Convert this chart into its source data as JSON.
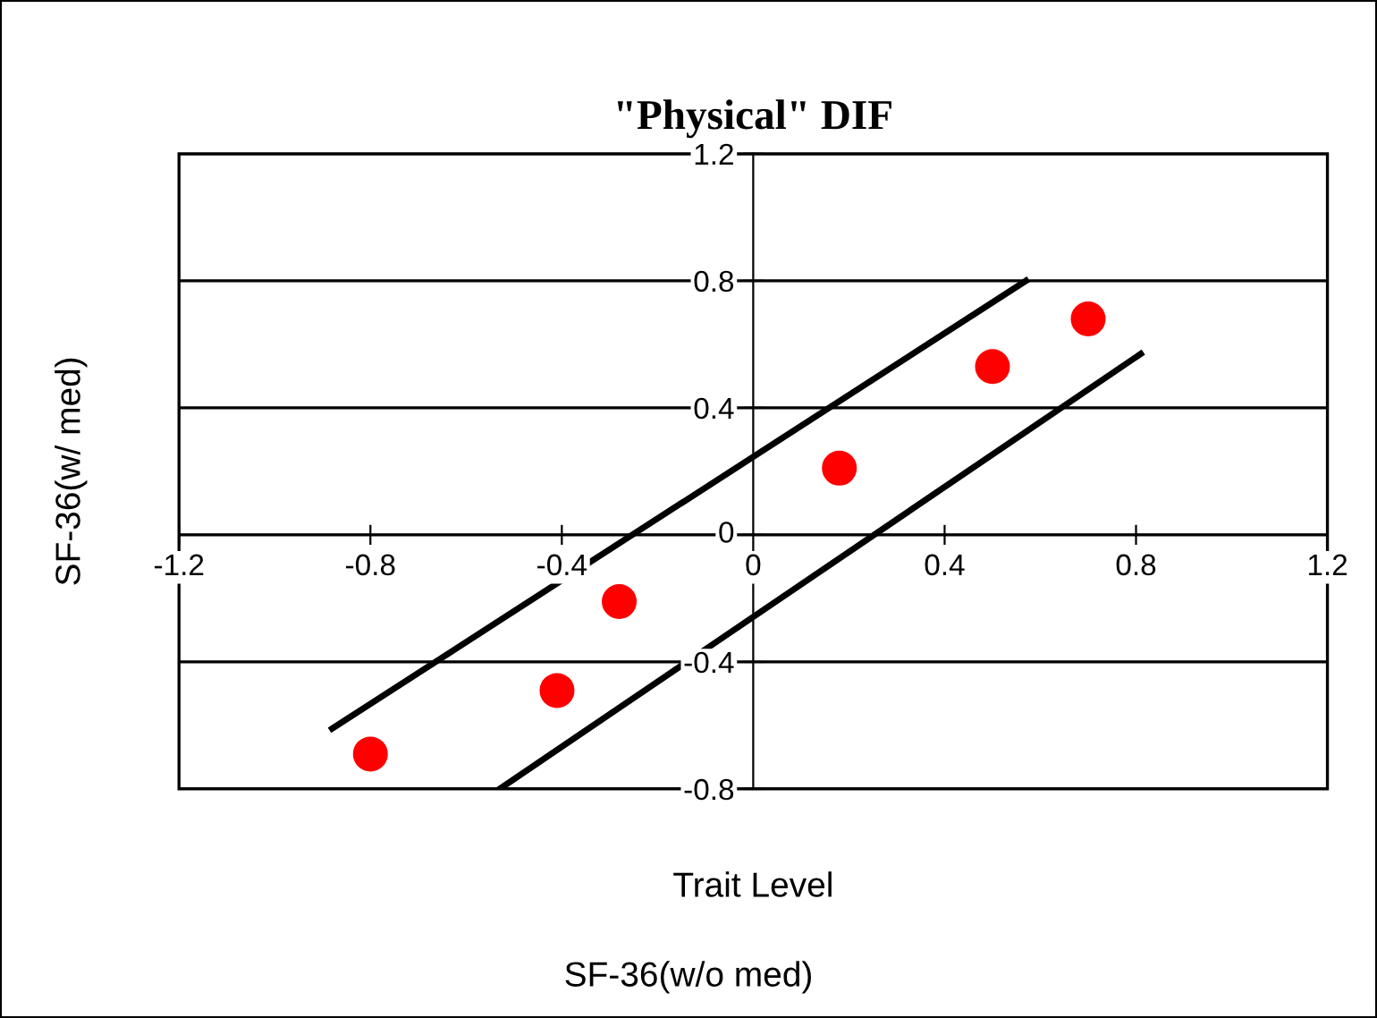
{
  "chart_data": {
    "type": "scatter",
    "title": "\"Physical\" DIF",
    "xlabel": "Trait Level",
    "ylabel": "SF-36(w/ med)",
    "annotations": [
      "SF-36(w/o med)"
    ],
    "xlim": [
      -1.2,
      1.2
    ],
    "xticks": [
      -1.2,
      -0.8,
      -0.4,
      0,
      0.4,
      0.8,
      1.2
    ],
    "ylim": [
      -0.8,
      1.2
    ],
    "yticks": [
      -0.8,
      -0.4,
      0,
      0.4,
      0.8,
      1.2
    ],
    "grid": "y",
    "marker": "circle",
    "series": [
      {
        "type": "scatter",
        "color": "#ff0000",
        "x": [
          -0.8,
          -0.41,
          -0.28,
          0.18,
          0.5,
          0.7
        ],
        "values": [
          -0.69,
          -0.49,
          -0.21,
          0.21,
          0.53,
          0.68
        ]
      },
      {
        "type": "line",
        "color": "#000000",
        "marker": "none",
        "line_style": "solid",
        "x": [
          -0.88,
          0.57
        ],
        "values": [
          -0.61,
          0.8
        ]
      },
      {
        "type": "line",
        "color": "#000000",
        "marker": "none",
        "line_style": "solid",
        "x": [
          -0.53,
          0.81
        ],
        "values": [
          -0.8,
          0.57
        ]
      }
    ]
  }
}
